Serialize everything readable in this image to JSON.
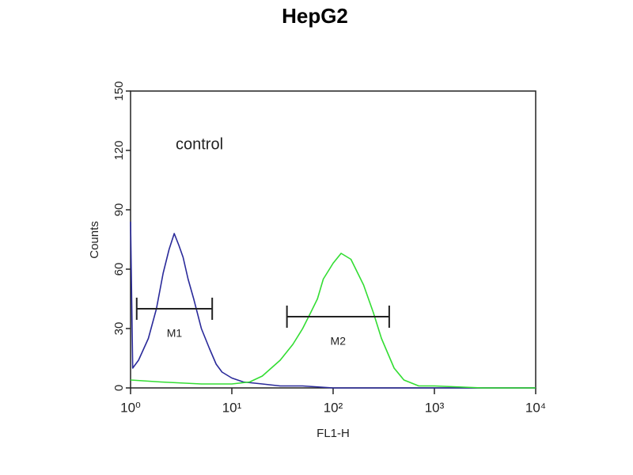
{
  "chart_data": {
    "type": "line",
    "title": "HepG2",
    "x_label": "FL1-H",
    "y_label": "Counts",
    "annotation": "control",
    "log_x": true,
    "xlim": [
      1,
      10000
    ],
    "xticks": [
      {
        "value": 1,
        "label": "10⁰"
      },
      {
        "value": 10,
        "label": "10¹"
      },
      {
        "value": 100,
        "label": "10²"
      },
      {
        "value": 1000,
        "label": "10³"
      },
      {
        "value": 10000,
        "label": "10⁴"
      }
    ],
    "ylim": [
      0,
      150
    ],
    "yticks": [
      0,
      30,
      60,
      90,
      120,
      150
    ],
    "series": [
      {
        "color": "#2a2a9a",
        "x": [
          1,
          1.05,
          1.2,
          1.5,
          1.8,
          2.1,
          2.4,
          2.7,
          3.0,
          3.3,
          3.7,
          4.2,
          5,
          6,
          7,
          8,
          10,
          13,
          20,
          30,
          50,
          100,
          300,
          1000,
          10000
        ],
        "values": [
          84,
          10,
          14,
          25,
          40,
          58,
          70,
          78,
          72,
          66,
          55,
          45,
          30,
          20,
          12,
          8,
          5,
          3,
          2,
          1,
          1,
          0,
          0,
          0,
          0
        ]
      },
      {
        "color": "#33dd33",
        "x": [
          1,
          2,
          5,
          10,
          15,
          20,
          30,
          40,
          50,
          60,
          70,
          80,
          100,
          120,
          150,
          200,
          250,
          300,
          400,
          500,
          700,
          1000,
          3000,
          10000
        ],
        "values": [
          4,
          3,
          2,
          2,
          3,
          6,
          14,
          22,
          30,
          38,
          45,
          55,
          63,
          68,
          65,
          52,
          38,
          25,
          10,
          4,
          1,
          1,
          0,
          0
        ]
      }
    ],
    "markers": [
      {
        "label": "M1",
        "range": [
          1.15,
          6.4
        ],
        "y": 40
      },
      {
        "label": "M2",
        "range": [
          35,
          358
        ],
        "y": 36
      }
    ]
  }
}
